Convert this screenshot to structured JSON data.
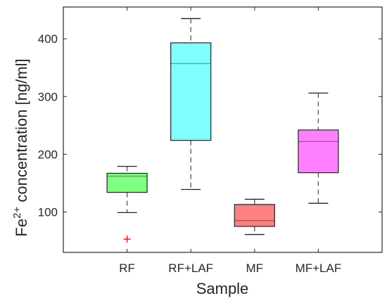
{
  "chart_data": {
    "type": "box",
    "xlabel": "Sample",
    "ylabel": {
      "prefix": "Fe",
      "superscript": "2+",
      "suffix": " concentration [ng/ml]"
    },
    "ylim": [
      30,
      455
    ],
    "yticks": [
      100,
      200,
      300,
      400
    ],
    "grid": false,
    "categories": [
      "RF",
      "RF+LAF",
      "MF",
      "MF+LAF"
    ],
    "boxes": [
      {
        "category": "RF",
        "min": 99,
        "q1": 134,
        "median": 162,
        "q3": 167,
        "max": 179,
        "outliers": [
          53
        ],
        "color": "#80ff80"
      },
      {
        "category": "RF+LAF",
        "min": 139,
        "q1": 224,
        "median": 357,
        "q3": 393,
        "max": 435,
        "outliers": [],
        "color": "#80ffff"
      },
      {
        "category": "MF",
        "min": 61,
        "q1": 75,
        "median": 85,
        "q3": 113,
        "max": 122,
        "outliers": [],
        "color": "#ff8080"
      },
      {
        "category": "MF+LAF",
        "min": 115,
        "q1": 168,
        "median": 222,
        "q3": 242,
        "max": 306,
        "outliers": [],
        "color": "#ff80ff"
      }
    ],
    "outlier_color": "#ff0000"
  }
}
